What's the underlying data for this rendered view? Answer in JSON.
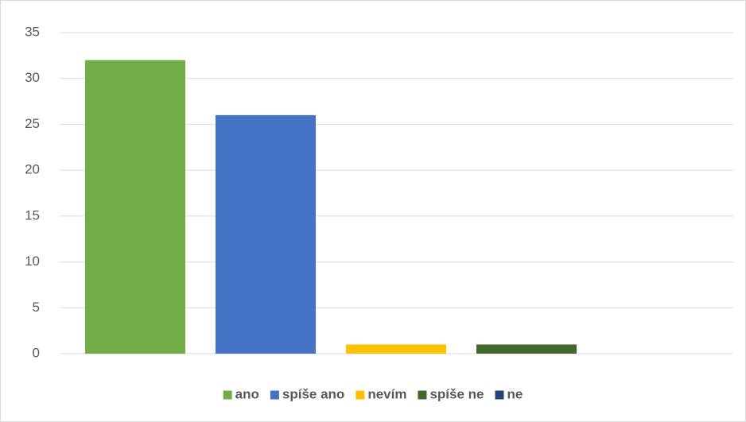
{
  "chart_data": {
    "type": "bar",
    "categories": [
      null
    ],
    "series": [
      {
        "name": "ano",
        "color": "#70ad47",
        "values": [
          32
        ]
      },
      {
        "name": "spíše ano",
        "color": "#4472c4",
        "values": [
          26
        ]
      },
      {
        "name": "nevím",
        "color": "#ffc000",
        "values": [
          1
        ]
      },
      {
        "name": "spíše ne",
        "color": "#43682b",
        "values": [
          1
        ]
      },
      {
        "name": "ne",
        "color": "#264478",
        "values": [
          0
        ]
      }
    ],
    "ylim": [
      0,
      35
    ],
    "yticks": [
      0,
      5,
      10,
      15,
      20,
      25,
      30,
      35
    ],
    "grid": true,
    "legend": "bottom"
  }
}
